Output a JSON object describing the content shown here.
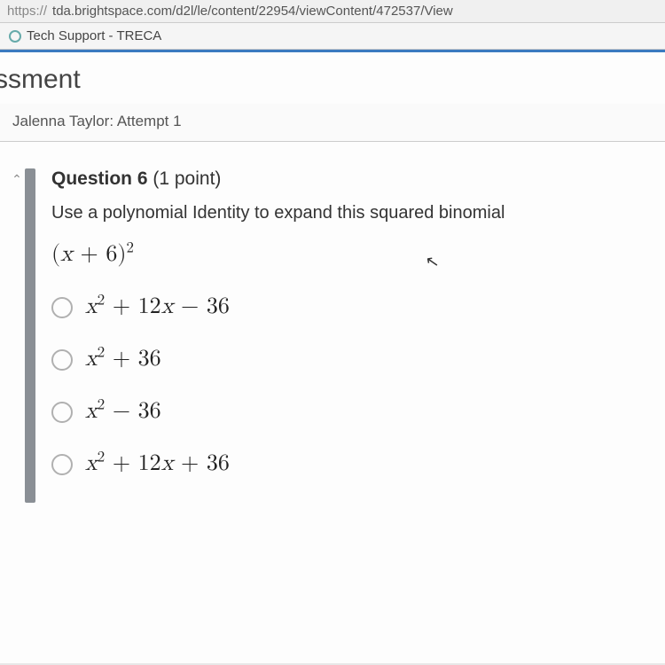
{
  "browser": {
    "url_prefix": "https://",
    "url_rest": "tda.brightspace.com/d2l/le/content/22954/viewContent/472537/View"
  },
  "tab": {
    "title": "Tech Support - TRECA"
  },
  "page": {
    "title_fragment": "ssment",
    "attempt_line": "Jalenna Taylor: Attempt 1"
  },
  "question": {
    "label": "Question 6",
    "points": "(1 point)",
    "prompt": "Use a polynomial Identity to expand this squared binomial",
    "expression_html": "(<span class='ital'>x</span> + 6)<sup>2</sup>",
    "options": [
      {
        "html": "<span class='ital'>x</span><sup>2</sup> + 12<span class='ital'>x</span> − 36"
      },
      {
        "html": "<span class='ital'>x</span><sup>2</sup> + 36"
      },
      {
        "html": "<span class='ital'>x</span><sup>2</sup> − 36"
      },
      {
        "html": "<span class='ital'>x</span><sup>2</sup> + 12<span class='ital'>x</span> + 36"
      }
    ]
  },
  "colors": {
    "accent": "#3a7ac0",
    "text": "#333333",
    "muted": "#888888",
    "radio_border": "#b0b0b0",
    "side_indicator": "#8a8f95",
    "background": "#fdfdfd"
  }
}
